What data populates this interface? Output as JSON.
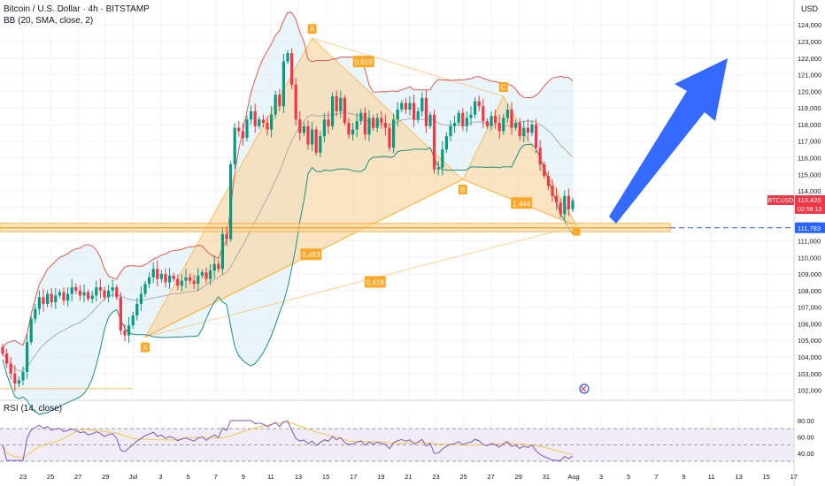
{
  "header": {
    "symbol_line": "Bitcoin / U.S. Dollar · 4h · BITSTAMP",
    "indicator_line": "BB (20, SMA, close, 2)",
    "currency": "USD"
  },
  "rsi_panel": {
    "label": "RSI (14, close)"
  },
  "price_tag": {
    "symbol": "BTCUSD",
    "price": "113,420",
    "countdown": "02:58:13"
  },
  "level_tag": {
    "price": "111,783"
  },
  "colors": {
    "up": "#089981",
    "down": "#f23645",
    "pattern_fill": "#f9d9a9",
    "pattern_line": "#ffa726",
    "bb_upper": "#e25a4f",
    "bb_lower": "#1b8f84",
    "bb_fill": "#d9ecf5",
    "rsi": "#7e57c2",
    "rsi_ma": "#f2c94c",
    "arrow": "#2962ff"
  },
  "chart_data": {
    "type": "candlestick",
    "title": "Bitcoin / U.S. Dollar · 4h · BITSTAMP",
    "y_axis_ticks": [
      "124,000",
      "123,000",
      "122,000",
      "121,000",
      "120,000",
      "119,000",
      "118,000",
      "117,000",
      "116,000",
      "115,000",
      "114,000",
      "113,000",
      "112,000",
      "111,000",
      "110,000",
      "109,000",
      "108,000",
      "107,000",
      "106,000",
      "105,000",
      "104,000",
      "103,000",
      "102,000"
    ],
    "y_range": [
      101500,
      125500
    ],
    "x_axis_ticks": [
      "23",
      "25",
      "27",
      "29",
      "Jul",
      "3",
      "5",
      "7",
      "9",
      "11",
      "13",
      "15",
      "17",
      "19",
      "21",
      "23",
      "25",
      "27",
      "29",
      "31",
      "Aug",
      "3",
      "5",
      "7",
      "9",
      "11",
      "13",
      "15",
      "17"
    ],
    "rsi_ticks": [
      "80.00",
      "60.00",
      "40.00"
    ],
    "rsi_range": [
      30,
      82
    ],
    "harmonic_pattern": {
      "points": [
        {
          "label": "X",
          "price": 105200
        },
        {
          "label": "A",
          "price": 123200
        },
        {
          "label": "B",
          "price": 114700
        },
        {
          "label": "C",
          "price": 119700
        },
        {
          "label": "D",
          "price": 111900
        }
      ],
      "ratios": [
        "0.619",
        "1.444",
        "0.483",
        "0.618"
      ]
    },
    "support_zone": [
      111550,
      112050
    ],
    "horizontal_level": 111783,
    "last_price": 113420,
    "closes": [
      104200,
      103600,
      103000,
      102400,
      102600,
      103100,
      104900,
      106300,
      106900,
      107600,
      107200,
      107800,
      107300,
      107700,
      107900,
      107400,
      107800,
      108200,
      108000,
      107700,
      107900,
      107500,
      107700,
      108200,
      108000,
      107600,
      108000,
      108200,
      107600,
      105600,
      105300,
      105900,
      106500,
      107200,
      107800,
      108400,
      108800,
      109300,
      108700,
      109000,
      108500,
      108900,
      108700,
      108300,
      108600,
      108800,
      108600,
      108400,
      108900,
      109100,
      108700,
      109200,
      109600,
      109300,
      111400,
      111100,
      115600,
      117800,
      117600,
      117200,
      118300,
      118800,
      117900,
      118300,
      118100,
      117700,
      118600,
      119800,
      119100,
      121800,
      122300,
      120400,
      118300,
      117500,
      117900,
      116800,
      117700,
      116300,
      117300,
      118300,
      117900,
      119700,
      118800,
      119600,
      118100,
      117400,
      117700,
      118200,
      118700,
      117400,
      118400,
      117800,
      118400,
      118100,
      117800,
      116600,
      118300,
      118900,
      119300,
      118900,
      119300,
      118300,
      118800,
      119600,
      117900,
      118600,
      115300,
      115400,
      116500,
      117300,
      117900,
      118100,
      118700,
      117900,
      118400,
      118600,
      119400,
      119100,
      118200,
      117900,
      118500,
      118100,
      117600,
      118400,
      118900,
      117800,
      118100,
      117300,
      117800,
      117500,
      118000,
      116600,
      115600,
      114900,
      114300,
      113700,
      113300,
      112600,
      113700,
      112900,
      113420
    ]
  }
}
